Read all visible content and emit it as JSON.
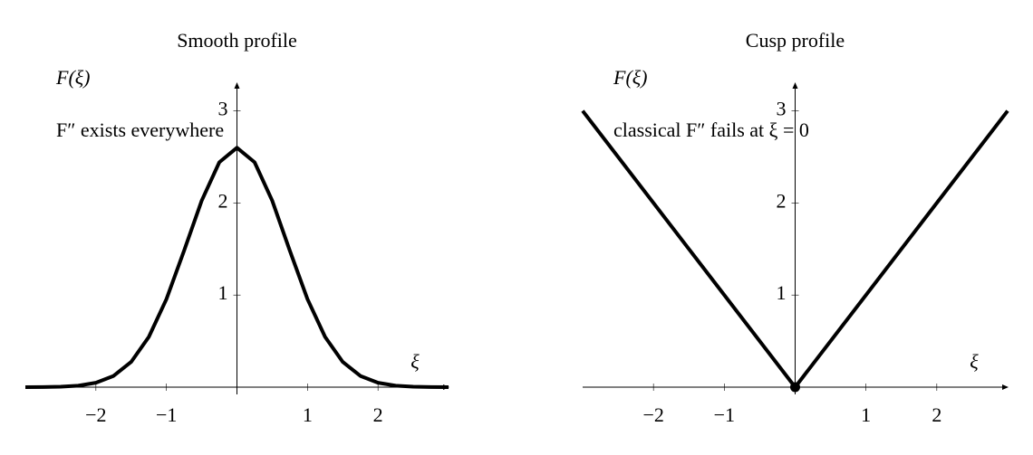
{
  "chart_data": [
    {
      "type": "line",
      "title": "Smooth profile",
      "xlabel": "ξ",
      "ylabel": "F(ξ)",
      "annotation": "F″ exists everywhere",
      "x": [
        -3,
        -2.75,
        -2.5,
        -2.25,
        -2,
        -1.75,
        -1.5,
        -1.25,
        -1,
        -0.75,
        -0.5,
        -0.25,
        0,
        0.25,
        0.5,
        0.75,
        1,
        1.25,
        1.5,
        1.75,
        2,
        2.25,
        2.5,
        2.75,
        3
      ],
      "values": [
        0,
        0.001,
        0.005,
        0.016,
        0.048,
        0.122,
        0.274,
        0.545,
        0.956,
        1.481,
        2.025,
        2.442,
        2.6,
        2.442,
        2.025,
        1.481,
        0.956,
        0.545,
        0.274,
        0.122,
        0.048,
        0.016,
        0.005,
        0.001,
        0
      ],
      "color": "#000000",
      "xlim": [
        -3,
        3
      ],
      "ylim": [
        0,
        3.3
      ],
      "xticks": [
        {
          "value": -2,
          "label": "−2"
        },
        {
          "value": -1,
          "label": "−1"
        },
        1,
        2
      ],
      "yticks": [
        1,
        2,
        3
      ]
    },
    {
      "type": "line",
      "title": "Cusp profile",
      "xlabel": "ξ",
      "ylabel": "F(ξ)",
      "annotation": "classical F″ fails at ξ = 0",
      "x": [
        -3,
        0,
        3
      ],
      "values": [
        3,
        0,
        3
      ],
      "marker": {
        "x": 0,
        "y": 0
      },
      "color": "#000000",
      "xlim": [
        -3,
        3
      ],
      "ylim": [
        0,
        3.3
      ],
      "xticks": [
        {
          "value": -2,
          "label": "−2"
        },
        {
          "value": -1,
          "label": "−1"
        },
        1,
        2
      ],
      "yticks": [
        1,
        2,
        3
      ]
    }
  ]
}
